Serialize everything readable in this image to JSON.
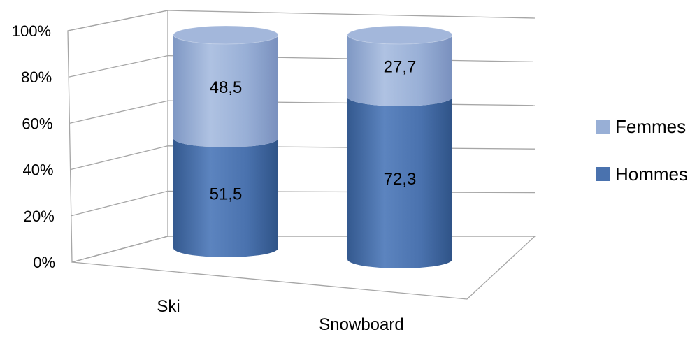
{
  "chart_data": {
    "type": "bar",
    "stacked": true,
    "percent_stacked": true,
    "style": "3d-cylinder",
    "categories": [
      "Ski",
      "Snowboard"
    ],
    "series": [
      {
        "name": "Hommes",
        "values": [
          51.5,
          72.3
        ],
        "color": "#4A72AE"
      },
      {
        "name": "Femmes",
        "values": [
          48.5,
          27.7
        ],
        "color": "#98AFD6"
      }
    ],
    "data_labels": [
      [
        "51,5",
        "72,3"
      ],
      [
        "48,5",
        "27,7"
      ]
    ],
    "y_ticks": [
      "0%",
      "20%",
      "40%",
      "60%",
      "80%",
      "100%"
    ],
    "ylim": [
      0,
      100
    ],
    "grid": true,
    "legend_position": "right"
  }
}
